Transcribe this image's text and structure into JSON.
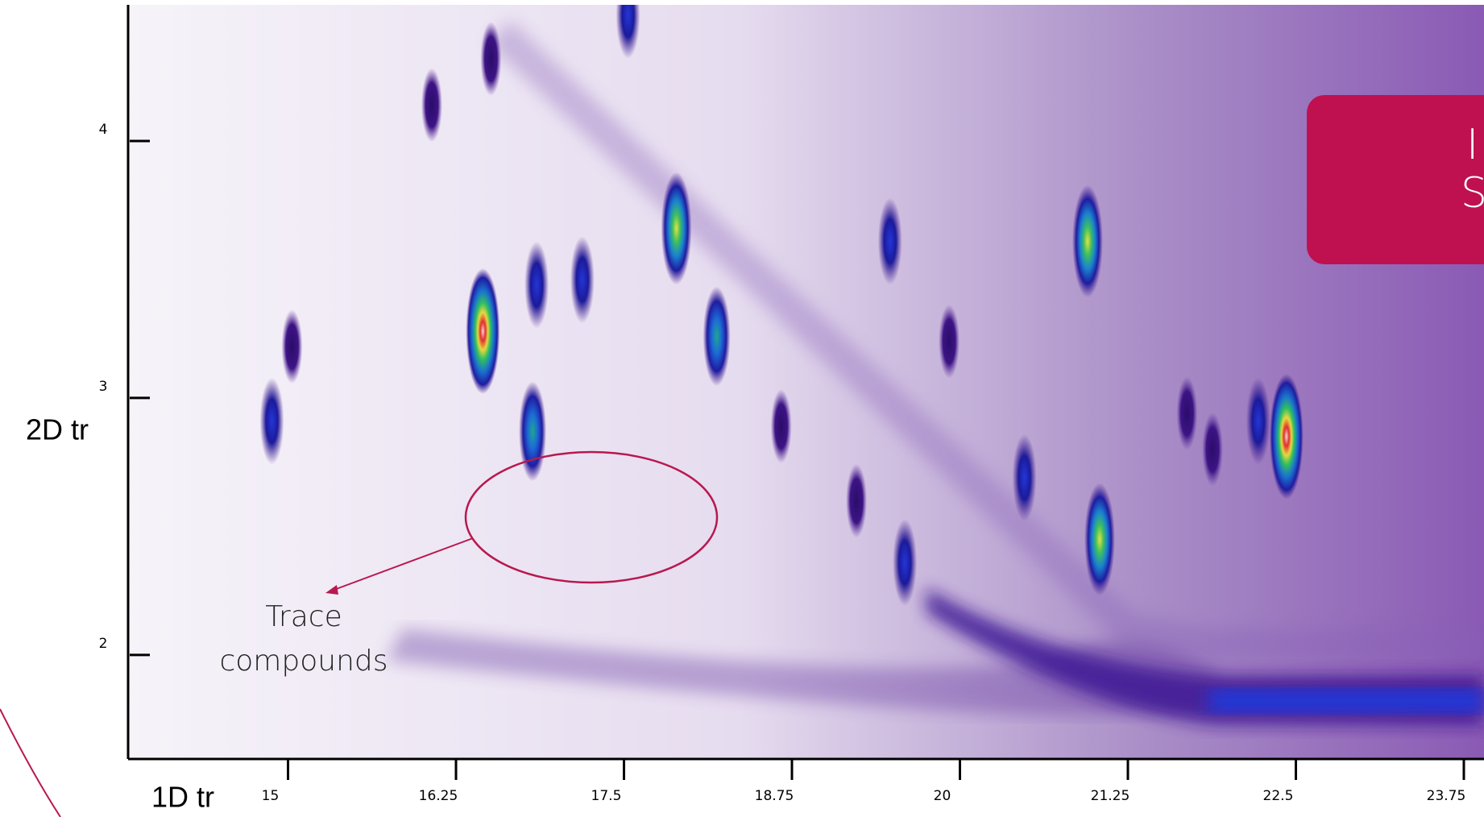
{
  "chart_data": {
    "type": "peakmap",
    "xlabel": "1D tr",
    "ylabel": "2D tr",
    "xlim": [
      13.81,
      23.9
    ],
    "ylim": [
      1.595,
      4.53
    ],
    "xticks": [
      15,
      16.25,
      17.5,
      18.75,
      20,
      21.25,
      22.5,
      23.75
    ],
    "yticks": [
      2,
      3,
      4
    ],
    "x": [
      14.88,
      15.03,
      16.45,
      16.85,
      16.82,
      17.19,
      17.89,
      18.19,
      17.53,
      19.48,
      20.95,
      22.43,
      22.22,
      21.69,
      21.88,
      21.04,
      20.48,
      19.59,
      19.23,
      18.67,
      16.51,
      16.07,
      19.92
    ],
    "y": [
      2.91,
      3.2,
      3.26,
      3.44,
      2.87,
      3.46,
      3.66,
      3.24,
      4.49,
      3.61,
      3.61,
      2.85,
      2.91,
      2.94,
      2.8,
      2.45,
      2.69,
      2.36,
      2.6,
      2.89,
      4.32,
      4.14,
      3.22
    ],
    "values": [
      2,
      1,
      5,
      2,
      3,
      2,
      4,
      3,
      2,
      2,
      4,
      5,
      2,
      1,
      1,
      4,
      2,
      2,
      1,
      1,
      1,
      1,
      1
    ],
    "annotation": [
      "Trace",
      "compounds"
    ],
    "callout": [
      "I",
      "S"
    ]
  }
}
